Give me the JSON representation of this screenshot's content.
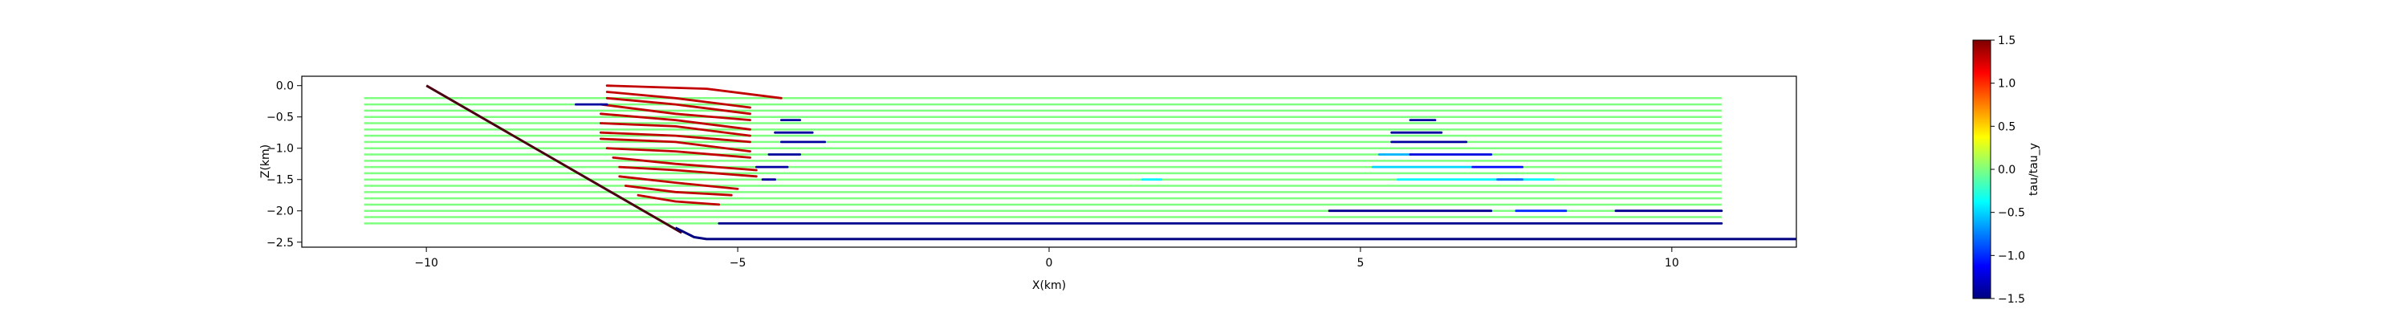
{
  "chart_data": {
    "type": "line",
    "title": "",
    "xlabel": "X(km)",
    "ylabel": "Z(km)",
    "xlim": [
      -12.0,
      12.0
    ],
    "ylim": [
      -2.58,
      0.15
    ],
    "x_ticks": [
      -10,
      -5,
      0,
      5,
      10
    ],
    "x_tick_labels": [
      "−10",
      "−5",
      "0",
      "5",
      "10"
    ],
    "y_ticks": [
      0.0,
      -0.5,
      -1.0,
      -1.5,
      -2.0,
      -2.5
    ],
    "y_tick_labels": [
      "0.0",
      "−0.5",
      "−1.0",
      "−1.5",
      "−2.0",
      "−2.5"
    ],
    "grid": false,
    "colorbar": {
      "label": "tau/tau_y",
      "min": -1.5,
      "max": 1.5,
      "colormap": "jet",
      "ticks": [
        1.5,
        1.0,
        0.5,
        0.0,
        -0.5,
        -1.0,
        -1.5
      ],
      "tick_labels": [
        "1.5",
        "1.0",
        "0.5",
        "0.0",
        "−0.5",
        "−1.0",
        "−1.5"
      ]
    },
    "boundaries": [
      {
        "kind": "fault",
        "color": "#4a0010",
        "points": [
          [
            -10.0,
            0.0
          ],
          [
            -5.9,
            -2.35
          ]
        ]
      },
      {
        "kind": "basal-boundary",
        "color": "#000080",
        "points": [
          [
            -6.0,
            -2.27
          ],
          [
            -5.7,
            -2.42
          ],
          [
            -5.5,
            -2.45
          ],
          [
            12.0,
            -2.45
          ]
        ]
      }
    ],
    "series": [
      {
        "z": -0.2,
        "x_start": -11.0,
        "x_end": 10.8
      },
      {
        "z": -0.3,
        "x_start": -11.0,
        "x_end": 10.8
      },
      {
        "z": -0.4,
        "x_start": -11.0,
        "x_end": 10.8
      },
      {
        "z": -0.5,
        "x_start": -11.0,
        "x_end": 10.8
      },
      {
        "z": -0.6,
        "x_start": -11.0,
        "x_end": 10.8
      },
      {
        "z": -0.7,
        "x_start": -11.0,
        "x_end": 10.8
      },
      {
        "z": -0.8,
        "x_start": -11.0,
        "x_end": 10.8
      },
      {
        "z": -0.9,
        "x_start": -11.0,
        "x_end": 10.8
      },
      {
        "z": -1.0,
        "x_start": -11.0,
        "x_end": 10.8
      },
      {
        "z": -1.1,
        "x_start": -11.0,
        "x_end": 10.8
      },
      {
        "z": -1.2,
        "x_start": -11.0,
        "x_end": 10.8
      },
      {
        "z": -1.3,
        "x_start": -11.0,
        "x_end": 10.8
      },
      {
        "z": -1.4,
        "x_start": -11.0,
        "x_end": 10.8
      },
      {
        "z": -1.5,
        "x_start": -11.0,
        "x_end": 10.8
      },
      {
        "z": -1.6,
        "x_start": -11.0,
        "x_end": 10.8
      },
      {
        "z": -1.7,
        "x_start": -11.0,
        "x_end": 10.8
      },
      {
        "z": -1.8,
        "x_start": -11.0,
        "x_end": 10.8
      },
      {
        "z": -1.9,
        "x_start": -11.0,
        "x_end": 10.8
      },
      {
        "z": -2.0,
        "x_start": -11.0,
        "x_end": 10.8
      },
      {
        "z": -2.1,
        "x_start": -11.0,
        "x_end": 10.8
      },
      {
        "z": -2.2,
        "x_start": -11.0,
        "x_end": 10.8
      }
    ],
    "segments": [
      {
        "points": [
          [
            -7.1,
            0.0
          ],
          [
            -5.5,
            -0.05
          ],
          [
            -4.3,
            -0.2
          ]
        ],
        "value": 1.3
      },
      {
        "points": [
          [
            -7.1,
            -0.1
          ],
          [
            -6.0,
            -0.2
          ],
          [
            -4.8,
            -0.35
          ]
        ],
        "value": 1.3
      },
      {
        "points": [
          [
            -7.1,
            -0.2
          ],
          [
            -6.0,
            -0.3
          ],
          [
            -4.8,
            -0.45
          ]
        ],
        "value": 1.3
      },
      {
        "points": [
          [
            -7.2,
            -0.3
          ],
          [
            -6.0,
            -0.45
          ],
          [
            -4.8,
            -0.55
          ]
        ],
        "value": 1.3
      },
      {
        "points": [
          [
            -7.2,
            -0.45
          ],
          [
            -6.0,
            -0.55
          ],
          [
            -4.8,
            -0.7
          ]
        ],
        "value": 1.3
      },
      {
        "points": [
          [
            -7.2,
            -0.6
          ],
          [
            -6.0,
            -0.65
          ],
          [
            -4.8,
            -0.8
          ]
        ],
        "value": 1.3
      },
      {
        "points": [
          [
            -7.2,
            -0.75
          ],
          [
            -6.0,
            -0.8
          ],
          [
            -4.8,
            -0.9
          ]
        ],
        "value": 1.3
      },
      {
        "points": [
          [
            -7.2,
            -0.85
          ],
          [
            -6.0,
            -0.9
          ],
          [
            -4.8,
            -1.05
          ]
        ],
        "value": 1.3
      },
      {
        "points": [
          [
            -7.1,
            -1.0
          ],
          [
            -6.0,
            -1.05
          ],
          [
            -4.8,
            -1.15
          ]
        ],
        "value": 1.3
      },
      {
        "points": [
          [
            -7.0,
            -1.15
          ],
          [
            -6.0,
            -1.25
          ],
          [
            -4.7,
            -1.35
          ]
        ],
        "value": 1.3
      },
      {
        "points": [
          [
            -6.9,
            -1.3
          ],
          [
            -6.0,
            -1.35
          ],
          [
            -4.7,
            -1.45
          ]
        ],
        "value": 1.3
      },
      {
        "points": [
          [
            -6.9,
            -1.45
          ],
          [
            -6.0,
            -1.55
          ],
          [
            -5.0,
            -1.65
          ]
        ],
        "value": 1.3
      },
      {
        "points": [
          [
            -6.8,
            -1.6
          ],
          [
            -6.0,
            -1.7
          ],
          [
            -5.1,
            -1.75
          ]
        ],
        "value": 1.3
      },
      {
        "points": [
          [
            -6.6,
            -1.75
          ],
          [
            -6.0,
            -1.85
          ],
          [
            -5.3,
            -1.9
          ]
        ],
        "value": 1.3
      },
      {
        "points": [
          [
            -7.6,
            -0.3
          ],
          [
            -7.1,
            -0.3
          ]
        ],
        "value": -1.4
      },
      {
        "points": [
          [
            -4.3,
            -0.55
          ],
          [
            -4.0,
            -0.55
          ]
        ],
        "value": -1.4
      },
      {
        "points": [
          [
            -4.4,
            -0.75
          ],
          [
            -3.8,
            -0.75
          ]
        ],
        "value": -1.4
      },
      {
        "points": [
          [
            -4.3,
            -0.9
          ],
          [
            -3.6,
            -0.9
          ]
        ],
        "value": -1.4
      },
      {
        "points": [
          [
            -4.5,
            -1.1
          ],
          [
            -4.0,
            -1.1
          ]
        ],
        "value": -1.4
      },
      {
        "points": [
          [
            -4.7,
            -1.3
          ],
          [
            -4.2,
            -1.3
          ]
        ],
        "value": -1.4
      },
      {
        "points": [
          [
            -4.6,
            -1.5
          ],
          [
            -4.4,
            -1.5
          ]
        ],
        "value": -1.4
      },
      {
        "points": [
          [
            -5.3,
            -2.2
          ],
          [
            10.8,
            -2.2
          ]
        ],
        "value": -1.45
      },
      {
        "points": [
          [
            4.5,
            -2.0
          ],
          [
            7.1,
            -2.0
          ]
        ],
        "value": -1.45
      },
      {
        "points": [
          [
            7.5,
            -2.0
          ],
          [
            8.3,
            -2.0
          ]
        ],
        "value": -1.0
      },
      {
        "points": [
          [
            9.1,
            -2.0
          ],
          [
            10.8,
            -2.0
          ]
        ],
        "value": -1.45
      },
      {
        "points": [
          [
            5.8,
            -0.55
          ],
          [
            6.2,
            -0.55
          ]
        ],
        "value": -1.4
      },
      {
        "points": [
          [
            5.5,
            -0.75
          ],
          [
            6.3,
            -0.75
          ]
        ],
        "value": -1.4
      },
      {
        "points": [
          [
            5.5,
            -0.9
          ],
          [
            6.7,
            -0.9
          ]
        ],
        "value": -1.4
      },
      {
        "points": [
          [
            5.3,
            -1.1
          ],
          [
            5.8,
            -1.1
          ]
        ],
        "value": -0.6
      },
      {
        "points": [
          [
            5.8,
            -1.1
          ],
          [
            7.1,
            -1.1
          ]
        ],
        "value": -1.2
      },
      {
        "points": [
          [
            5.2,
            -1.3
          ],
          [
            6.8,
            -1.3
          ]
        ],
        "value": -0.5
      },
      {
        "points": [
          [
            6.8,
            -1.3
          ],
          [
            7.6,
            -1.3
          ]
        ],
        "value": -1.1
      },
      {
        "points": [
          [
            5.6,
            -1.5
          ],
          [
            8.1,
            -1.5
          ]
        ],
        "value": -0.4
      },
      {
        "points": [
          [
            7.2,
            -1.5
          ],
          [
            7.6,
            -1.5
          ]
        ],
        "value": -0.8
      },
      {
        "points": [
          [
            1.5,
            -1.5
          ],
          [
            1.8,
            -1.5
          ]
        ],
        "value": -0.4
      }
    ]
  }
}
